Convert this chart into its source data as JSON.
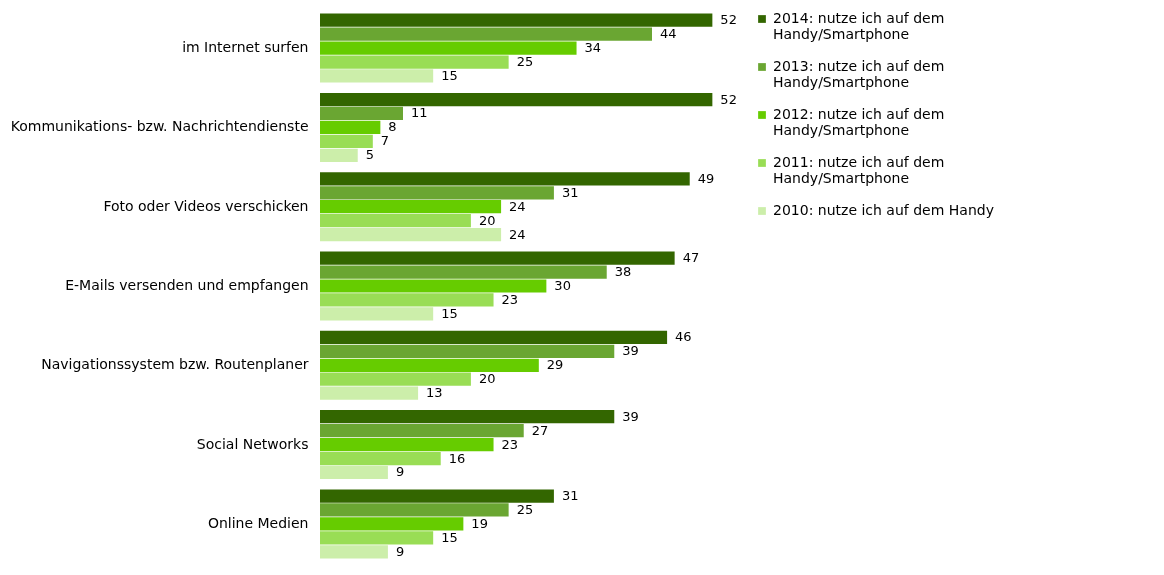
{
  "chart_data": {
    "type": "bar",
    "orientation": "horizontal",
    "categories": [
      "im Internet surfen",
      "Kommunikations- bzw. Nachrichtendienste",
      "Foto oder Videos verschicken",
      "E-Mails versenden und empfangen",
      "Navigationssystem bzw. Routenplaner",
      "Social Networks",
      "Online Medien"
    ],
    "series": [
      {
        "name": "2014: nutze ich auf dem Handy/Smartphone",
        "color": "#336600",
        "values": [
          52,
          52,
          49,
          47,
          46,
          39,
          31
        ]
      },
      {
        "name": "2013: nutze ich auf dem Handy/Smartphone",
        "color": "#6aa632",
        "values": [
          44,
          11,
          31,
          38,
          39,
          27,
          25
        ]
      },
      {
        "name": "2012: nutze ich auf dem Handy/Smartphone",
        "color": "#66cc00",
        "values": [
          34,
          8,
          24,
          30,
          29,
          23,
          19
        ]
      },
      {
        "name": "2011: nutze ich auf dem Handy/Smartphone",
        "color": "#99dd55",
        "values": [
          25,
          7,
          20,
          23,
          20,
          16,
          15
        ]
      },
      {
        "name": "2010: nutze ich auf dem Handy",
        "color": "#cceeaa",
        "values": [
          15,
          5,
          24,
          15,
          13,
          9,
          9
        ]
      }
    ],
    "data_labels": true,
    "tick_labels": "y",
    "grid": false,
    "legend": "right"
  }
}
